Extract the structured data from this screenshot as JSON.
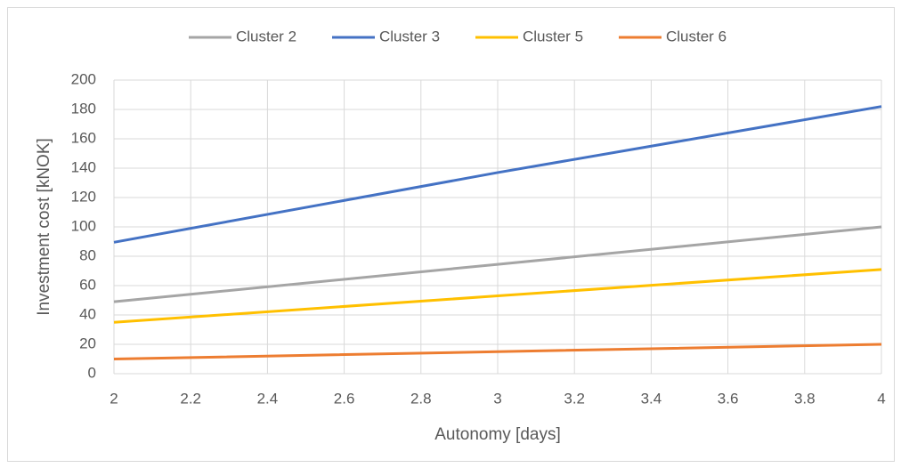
{
  "chart_data": {
    "type": "line",
    "x": [
      2,
      3,
      4
    ],
    "series": [
      {
        "name": "Cluster 2",
        "color": "#a5a5a5",
        "values": [
          49,
          74.5,
          100
        ]
      },
      {
        "name": "Cluster 3",
        "color": "#4472c4",
        "values": [
          89.5,
          137,
          182
        ]
      },
      {
        "name": "Cluster 5",
        "color": "#ffc000",
        "values": [
          35,
          53,
          71
        ]
      },
      {
        "name": "Cluster 6",
        "color": "#ed7d31",
        "values": [
          10,
          15,
          20
        ]
      }
    ],
    "xlabel": "Autonomy [days]",
    "ylabel": "Investment cost [kNOK]",
    "xlim": [
      2,
      4
    ],
    "xticks": [
      2,
      2.2,
      2.4,
      2.6,
      2.8,
      3,
      3.2,
      3.4,
      3.6,
      3.8,
      4
    ],
    "ylim": [
      0,
      200
    ],
    "yticks": [
      0,
      20,
      40,
      60,
      80,
      100,
      120,
      140,
      160,
      180,
      200
    ],
    "grid": true,
    "legend": "top"
  }
}
